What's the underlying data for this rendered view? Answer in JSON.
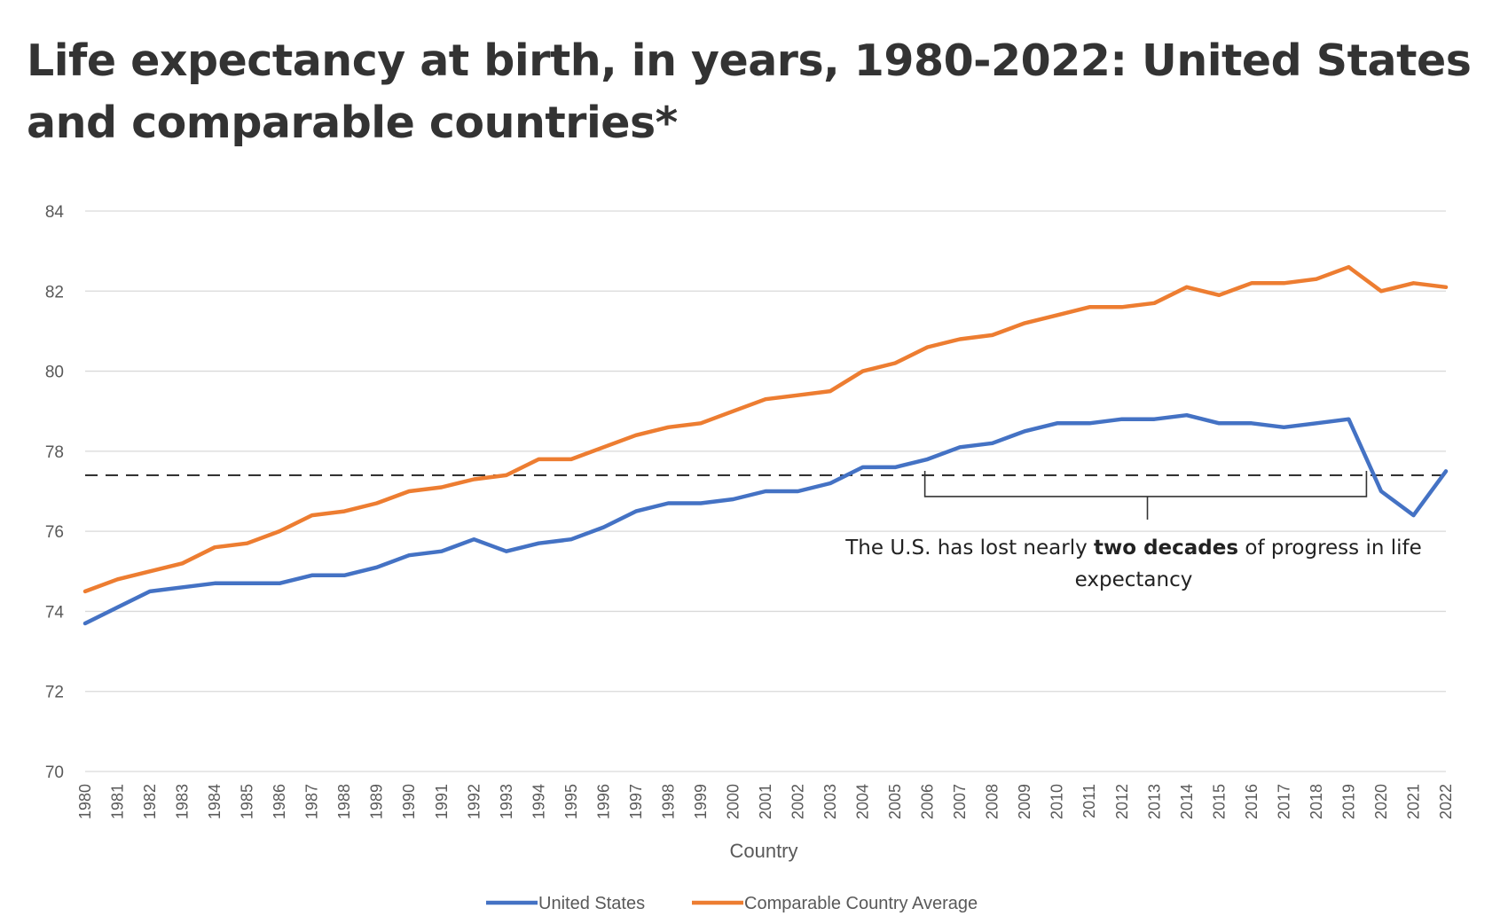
{
  "title": "Life expectancy at birth, in years, 1980-2022: United States and comparable countries*",
  "chart_data": {
    "type": "line",
    "title": "Life expectancy at birth, in years, 1980-2022: United States and comparable countries*",
    "xlabel": "Country",
    "ylabel": "",
    "ylim": [
      70,
      84
    ],
    "yticks": [
      70,
      72,
      74,
      76,
      78,
      80,
      82,
      84
    ],
    "grid": true,
    "legend_position": "bottom",
    "categories": [
      "1980",
      "1981",
      "1982",
      "1983",
      "1984",
      "1985",
      "1986",
      "1987",
      "1988",
      "1989",
      "1990",
      "1991",
      "1992",
      "1993",
      "1994",
      "1995",
      "1996",
      "1997",
      "1998",
      "1999",
      "2000",
      "2001",
      "2002",
      "2003",
      "2004",
      "2005",
      "2006",
      "2007",
      "2008",
      "2009",
      "2010",
      "2011",
      "2012",
      "2013",
      "2014",
      "2015",
      "2016",
      "2017",
      "2018",
      "2019",
      "2020",
      "2021",
      "2022"
    ],
    "series": [
      {
        "name": "United States",
        "color": "#4472c4",
        "values": [
          73.7,
          74.1,
          74.5,
          74.6,
          74.7,
          74.7,
          74.7,
          74.9,
          74.9,
          75.1,
          75.4,
          75.5,
          75.8,
          75.5,
          75.7,
          75.8,
          76.1,
          76.5,
          76.7,
          76.7,
          76.8,
          77.0,
          77.0,
          77.2,
          77.6,
          77.6,
          77.8,
          78.1,
          78.2,
          78.5,
          78.7,
          78.7,
          78.8,
          78.8,
          78.9,
          78.7,
          78.7,
          78.6,
          78.7,
          78.8,
          77.0,
          76.4,
          77.5
        ]
      },
      {
        "name": "Comparable Country Average",
        "color": "#ed7d31",
        "values": [
          74.5,
          74.8,
          75.0,
          75.2,
          75.6,
          75.7,
          76.0,
          76.4,
          76.5,
          76.7,
          77.0,
          77.1,
          77.3,
          77.4,
          77.8,
          77.8,
          78.1,
          78.4,
          78.6,
          78.7,
          79.0,
          79.3,
          79.4,
          79.5,
          80.0,
          80.2,
          80.6,
          80.8,
          80.9,
          81.2,
          81.4,
          81.6,
          81.6,
          81.7,
          82.1,
          81.9,
          82.2,
          82.2,
          82.3,
          82.6,
          82.0,
          82.2,
          82.1
        ]
      }
    ],
    "reference_line": {
      "y": 77.4,
      "style": "dashed"
    },
    "annotation": {
      "text_before": "The U.S. has lost nearly ",
      "text_bold": "two decades",
      "text_after": " of progress in life",
      "text_line2": "expectancy",
      "bracket_x_range": [
        "2006",
        "2019"
      ]
    }
  }
}
